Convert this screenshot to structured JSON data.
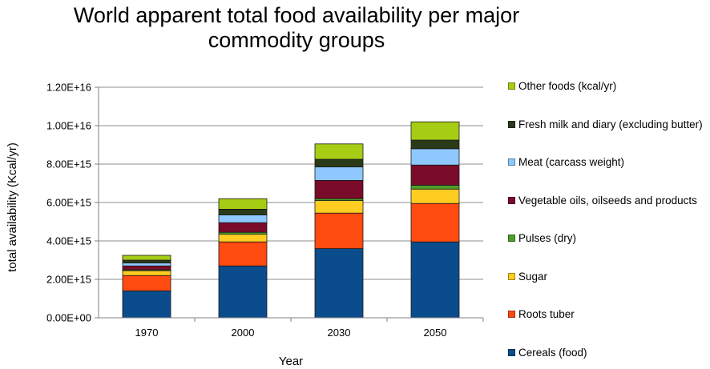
{
  "chart_data": {
    "type": "bar",
    "stacked": true,
    "title": "World apparent total food availability per major commodity groups",
    "xlabel": "Year",
    "ylabel": "total availability (Kcal/yr)",
    "ylim": [
      0,
      12000000000000000
    ],
    "y_ticks": [
      "0.00E+00",
      "2.00E+15",
      "4.00E+15",
      "6.00E+15",
      "8.00E+15",
      "1.00E+16",
      "1.20E+16"
    ],
    "grid": true,
    "legend_position": "right",
    "categories": [
      "1970",
      "2000",
      "2030",
      "2050"
    ],
    "series": [
      {
        "name": "Cereals (food)",
        "color": "#0b4c8c",
        "values": [
          1400000000000000.0,
          2700000000000000.0,
          3600000000000000.0,
          3950000000000000.0
        ]
      },
      {
        "name": "Roots tuber",
        "color": "#ff4a10",
        "values": [
          800000000000000.0,
          1250000000000000.0,
          1850000000000000.0,
          2000000000000000.0
        ]
      },
      {
        "name": "Sugar",
        "color": "#ffcc22",
        "values": [
          250000000000000.0,
          400000000000000.0,
          650000000000000.0,
          750000000000000.0
        ]
      },
      {
        "name": "Pulses (dry)",
        "color": "#4d9e2a",
        "values": [
          50000000000000.0,
          100000000000000.0,
          100000000000000.0,
          200000000000000.0
        ]
      },
      {
        "name": "Vegetable oils, oilseeds and products",
        "color": "#7a0b2a",
        "values": [
          200000000000000.0,
          500000000000000.0,
          950000000000000.0,
          1050000000000000.0
        ]
      },
      {
        "name": "Meat (carcass weight)",
        "color": "#8ec8ff",
        "values": [
          150000000000000.0,
          400000000000000.0,
          700000000000000.0,
          850000000000000.0
        ]
      },
      {
        "name": "Fresh milk and diary (excluding butter)",
        "color": "#2b3a18",
        "values": [
          150000000000000.0,
          300000000000000.0,
          400000000000000.0,
          450000000000000.0
        ]
      },
      {
        "name": "Other foods (kcal/yr)",
        "color": "#a6cc14",
        "values": [
          250000000000000.0,
          550000000000000.0,
          800000000000000.0,
          950000000000000.0
        ]
      }
    ]
  }
}
